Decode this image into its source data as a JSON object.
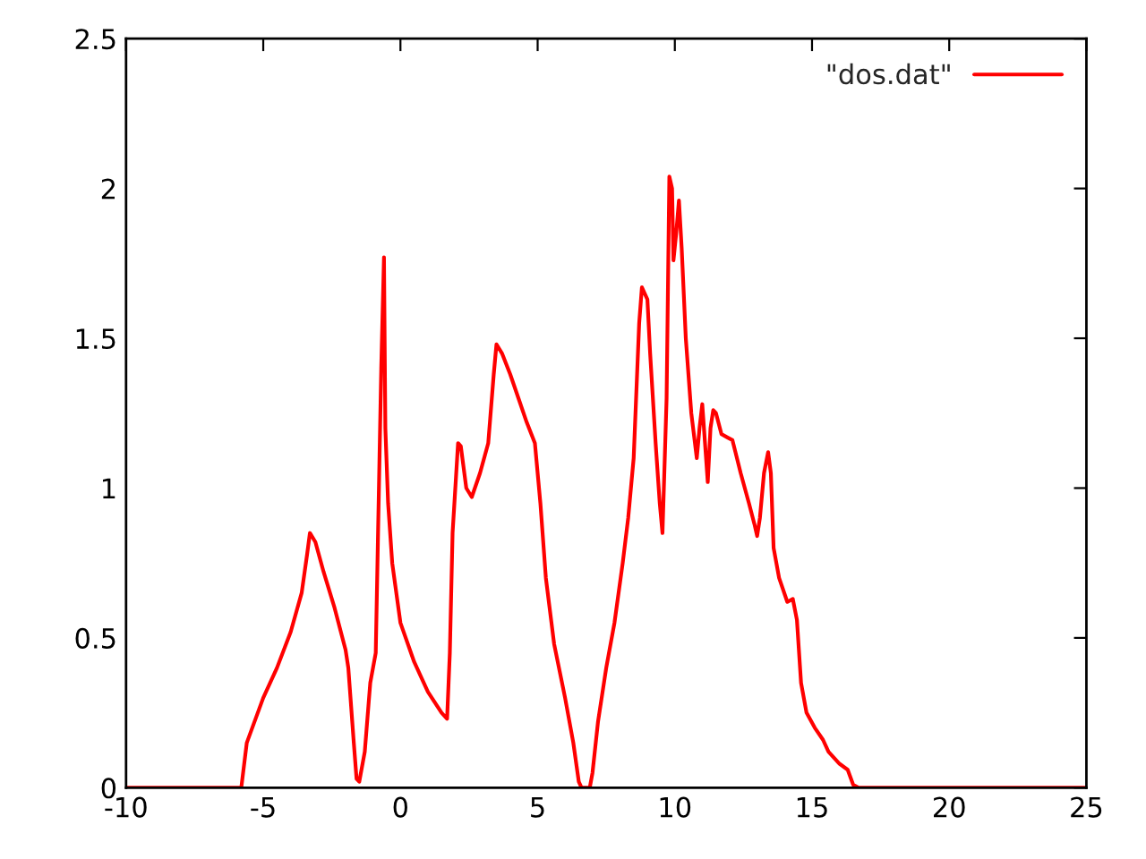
{
  "chart_data": {
    "type": "line",
    "xlim": [
      -10,
      25
    ],
    "ylim": [
      0,
      2.5
    ],
    "xticks": [
      -10,
      -5,
      0,
      5,
      10,
      15,
      20,
      25
    ],
    "yticks": [
      0,
      0.5,
      1,
      1.5,
      2,
      2.5
    ],
    "grid": false,
    "legend": "top right",
    "marker": "none",
    "line_style": "solid",
    "series": [
      {
        "name": "\"dos.dat\"",
        "color": "#ff0000",
        "x": [
          -10,
          -5.8,
          -5.6,
          -5,
          -4.5,
          -4,
          -3.6,
          -3.4,
          -3.3,
          -3.1,
          -2.8,
          -2.4,
          -2,
          -1.9,
          -1.7,
          -1.6,
          -1.5,
          -1.3,
          -1.1,
          -0.9,
          -0.7,
          -0.6,
          -0.55,
          -0.45,
          -0.3,
          0,
          0.5,
          1,
          1.5,
          1.7,
          1.8,
          1.9,
          2.1,
          2.2,
          2.4,
          2.6,
          2.9,
          3.2,
          3.4,
          3.5,
          3.7,
          4,
          4.3,
          4.6,
          4.9,
          5.1,
          5.3,
          5.6,
          6,
          6.3,
          6.5,
          6.6,
          6.9,
          7,
          7.2,
          7.5,
          7.8,
          8.1,
          8.3,
          8.5,
          8.7,
          8.8,
          9,
          9.1,
          9.3,
          9.45,
          9.55,
          9.7,
          9.8,
          9.9,
          9.95,
          10.05,
          10.15,
          10.25,
          10.4,
          10.6,
          10.8,
          10.9,
          11,
          11.1,
          11.2,
          11.3,
          11.4,
          11.5,
          11.7,
          11.9,
          12.1,
          12.4,
          12.7,
          12.9,
          13,
          13.1,
          13.25,
          13.4,
          13.5,
          13.6,
          13.8,
          14.1,
          14.3,
          14.45,
          14.6,
          14.8,
          15.1,
          15.4,
          15.6,
          15.8,
          16,
          16.3,
          16.5,
          16.7,
          25
        ],
        "values": [
          0,
          0,
          0.15,
          0.3,
          0.4,
          0.52,
          0.65,
          0.78,
          0.85,
          0.82,
          0.72,
          0.6,
          0.46,
          0.4,
          0.15,
          0.03,
          0.02,
          0.12,
          0.35,
          0.45,
          1.4,
          1.77,
          1.2,
          0.95,
          0.75,
          0.55,
          0.42,
          0.32,
          0.25,
          0.23,
          0.45,
          0.85,
          1.15,
          1.14,
          1,
          0.97,
          1.05,
          1.15,
          1.38,
          1.48,
          1.45,
          1.38,
          1.3,
          1.22,
          1.15,
          0.95,
          0.7,
          0.48,
          0.3,
          0.15,
          0.02,
          0,
          0,
          0.05,
          0.22,
          0.4,
          0.55,
          0.75,
          0.9,
          1.1,
          1.55,
          1.67,
          1.63,
          1.45,
          1.15,
          0.95,
          0.85,
          1.3,
          2.04,
          2,
          1.76,
          1.85,
          1.96,
          1.8,
          1.5,
          1.25,
          1.1,
          1.2,
          1.28,
          1.15,
          1.02,
          1.2,
          1.26,
          1.25,
          1.18,
          1.17,
          1.16,
          1.05,
          0.95,
          0.88,
          0.84,
          0.9,
          1.05,
          1.12,
          1.05,
          0.8,
          0.7,
          0.62,
          0.63,
          0.56,
          0.35,
          0.25,
          0.2,
          0.16,
          0.12,
          0.1,
          0.08,
          0.06,
          0.01,
          0,
          0
        ]
      }
    ]
  }
}
